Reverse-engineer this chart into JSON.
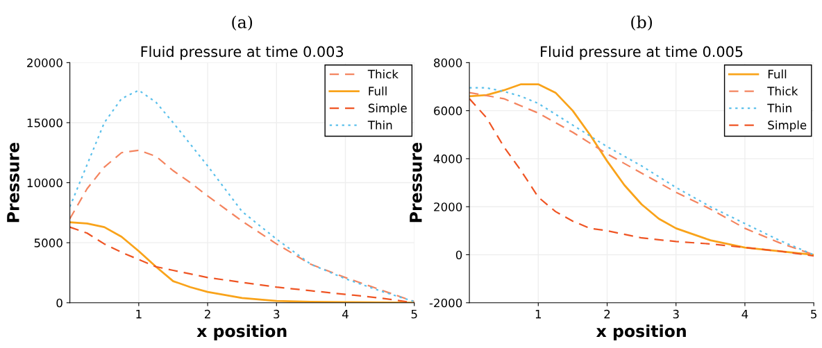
{
  "chart_data": [
    {
      "type": "line",
      "annotations": [
        "(a)"
      ],
      "title": "Fluid pressure at time 0.003",
      "xlabel": "x position",
      "ylabel": "Pressure",
      "xlim": [
        0,
        5
      ],
      "xticks": [
        1,
        2,
        3,
        4,
        5
      ],
      "ylim": [
        0,
        20000
      ],
      "yticks": [
        0,
        5000,
        10000,
        15000,
        20000
      ],
      "grid": true,
      "legend": "top right",
      "series": [
        {
          "name": "Thick",
          "color": "#f4845f",
          "line_style": "dashed",
          "x": [
            0,
            0.25,
            0.5,
            0.75,
            1,
            1.25,
            1.5,
            1.75,
            2,
            2.5,
            3,
            3.5,
            4,
            4.5,
            5
          ],
          "values": [
            7000,
            9500,
            11300,
            12500,
            12700,
            12200,
            11000,
            10000,
            8900,
            6800,
            4900,
            3200,
            2100,
            1100,
            100
          ]
        },
        {
          "name": "Full",
          "color": "#f9a31a",
          "line_style": "solid",
          "x": [
            0,
            0.25,
            0.5,
            0.75,
            1,
            1.25,
            1.5,
            1.75,
            2,
            2.5,
            3,
            3.5,
            4,
            5
          ],
          "values": [
            6700,
            6600,
            6300,
            5500,
            4300,
            3000,
            1800,
            1300,
            900,
            400,
            150,
            80,
            50,
            0
          ]
        },
        {
          "name": "Simple",
          "color": "#ef5423",
          "line_style": "dashed",
          "x": [
            0,
            0.25,
            0.5,
            0.75,
            1,
            1.25,
            1.5,
            1.75,
            2,
            2.5,
            3,
            3.5,
            4,
            4.5,
            5
          ],
          "values": [
            6300,
            5800,
            4900,
            4200,
            3600,
            3000,
            2700,
            2400,
            2100,
            1700,
            1300,
            1000,
            700,
            400,
            0
          ]
        },
        {
          "name": "Thin",
          "color": "#5bc0eb",
          "line_style": "dotted",
          "x": [
            0,
            0.25,
            0.5,
            0.75,
            1,
            1.25,
            1.5,
            1.75,
            2,
            2.5,
            3,
            3.5,
            4,
            4.5,
            5
          ],
          "values": [
            8000,
            11500,
            15000,
            17000,
            17700,
            16700,
            15000,
            13200,
            11400,
            7600,
            5300,
            3200,
            2000,
            1000,
            100
          ]
        }
      ]
    },
    {
      "type": "line",
      "annotations": [
        "(b)"
      ],
      "title": "Fluid pressure at time 0.005",
      "xlabel": "x position",
      "ylabel": "Pressure",
      "xlim": [
        0,
        5
      ],
      "xticks": [
        1,
        2,
        3,
        4,
        5
      ],
      "ylim": [
        -2000,
        8000
      ],
      "yticks": [
        -2000,
        0,
        2000,
        4000,
        6000,
        8000
      ],
      "grid": true,
      "legend": "top right",
      "series": [
        {
          "name": "Full",
          "color": "#f9a31a",
          "line_style": "solid",
          "x": [
            0,
            0.25,
            0.5,
            0.75,
            1,
            1.25,
            1.5,
            1.75,
            2,
            2.25,
            2.5,
            2.75,
            3,
            3.5,
            4,
            4.5,
            5
          ],
          "values": [
            6600,
            6650,
            6850,
            7100,
            7100,
            6750,
            6000,
            5000,
            3900,
            2900,
            2100,
            1500,
            1100,
            600,
            300,
            150,
            0
          ]
        },
        {
          "name": "Thick",
          "color": "#f4845f",
          "line_style": "dashed",
          "x": [
            0,
            0.5,
            0.75,
            1,
            1.5,
            2,
            2.5,
            3,
            3.5,
            4,
            4.5,
            5
          ],
          "values": [
            6750,
            6500,
            6200,
            5900,
            5100,
            4200,
            3400,
            2600,
            1900,
            1100,
            500,
            0
          ]
        },
        {
          "name": "Thin",
          "color": "#5bc0eb",
          "line_style": "dotted",
          "x": [
            0,
            0.25,
            0.5,
            0.75,
            1,
            1.5,
            2,
            2.5,
            3,
            3.5,
            4,
            4.5,
            5
          ],
          "values": [
            6950,
            6950,
            6800,
            6600,
            6300,
            5400,
            4500,
            3700,
            2800,
            2000,
            1300,
            600,
            0
          ]
        },
        {
          "name": "Simple",
          "color": "#ef5423",
          "line_style": "dashed",
          "x": [
            0,
            0.25,
            0.5,
            0.75,
            1,
            1.25,
            1.5,
            1.75,
            2,
            2.5,
            3,
            3.5,
            4,
            4.5,
            5
          ],
          "values": [
            6500,
            5700,
            4500,
            3500,
            2400,
            1800,
            1400,
            1100,
            1000,
            700,
            550,
            450,
            300,
            150,
            -50
          ]
        }
      ]
    }
  ]
}
